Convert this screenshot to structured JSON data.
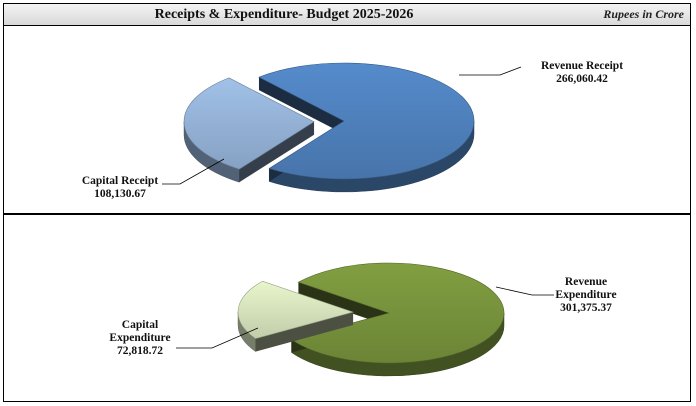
{
  "header": {
    "title": "Receipts & Expenditure- Budget 2025-2026",
    "units": "Rupees in Crore"
  },
  "chart_data": [
    {
      "type": "pie",
      "title": "",
      "series": [
        {
          "name": "Revenue Receipt",
          "value": 266060.42,
          "value_label": "266,060.42",
          "color": "#4f81bd"
        },
        {
          "name": "Capital Receipt",
          "value": 108130.67,
          "value_label": "108,130.67",
          "color": "#95b3d7"
        }
      ],
      "exploded_slice": "Capital Receipt",
      "legend": "none"
    },
    {
      "type": "pie",
      "title": "",
      "series": [
        {
          "name": "Revenue Expenditure",
          "value": 301375.37,
          "value_label": "301,375.37",
          "color": "#77933c"
        },
        {
          "name": "Capital Expenditure",
          "value": 72818.72,
          "value_label": "72,818.72",
          "color": "#d7e4bd"
        }
      ],
      "exploded_slice": "Capital Expenditure",
      "legend": "none"
    }
  ]
}
